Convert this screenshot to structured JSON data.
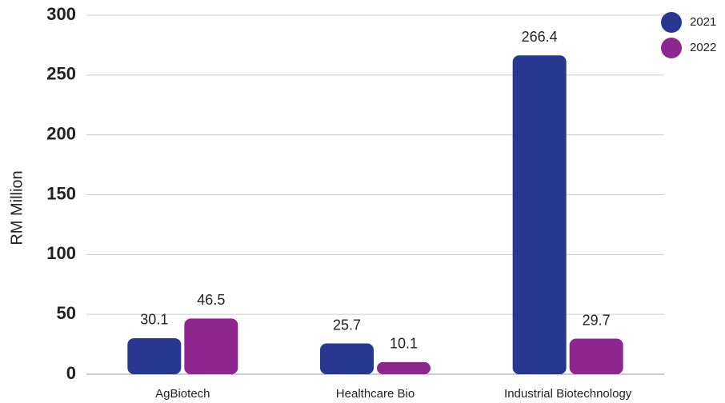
{
  "chart_data": {
    "type": "bar",
    "y_label": "RM Million",
    "categories": [
      "AgBiotech",
      "Healthcare Bio",
      "Industrial Biotechnology"
    ],
    "series": [
      {
        "name": "2021",
        "color": "#283891",
        "values": [
          30.1,
          25.7,
          266.4
        ]
      },
      {
        "name": "2022",
        "color": "#8e2690",
        "values": [
          46.5,
          10.1,
          29.7
        ]
      }
    ],
    "ylim": [
      0,
      300
    ],
    "yticks": [
      0,
      50,
      100,
      150,
      200,
      250,
      300
    ],
    "grid": true,
    "legend": "top-right"
  }
}
